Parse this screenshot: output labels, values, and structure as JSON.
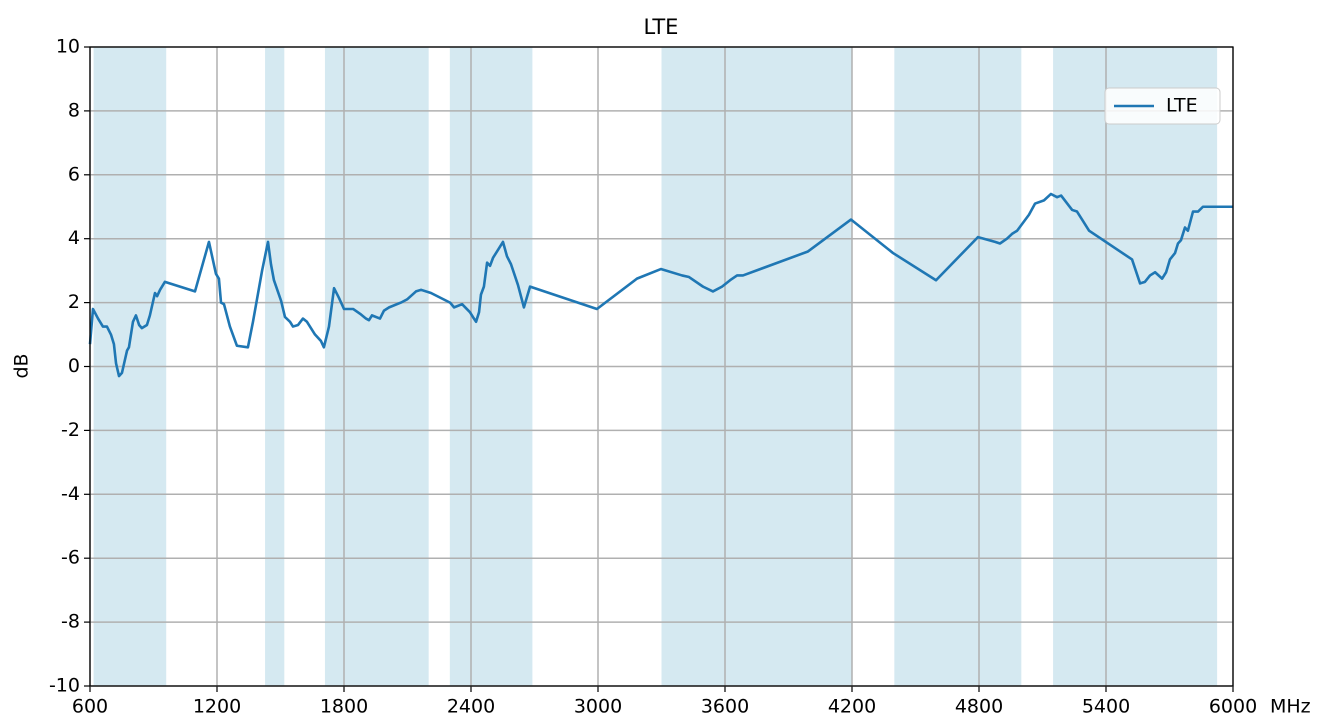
{
  "chart_data": {
    "type": "line",
    "title": "LTE",
    "xlabel": "MHz",
    "ylabel": "dB",
    "xlim": [
      600,
      6000
    ],
    "xticks": [
      600,
      1200,
      1800,
      2400,
      3000,
      3600,
      4200,
      4800,
      5400,
      6000
    ],
    "ylim": [
      -10,
      10
    ],
    "yticks": [
      -10,
      -8,
      -6,
      -4,
      -2,
      0,
      2,
      4,
      6,
      8,
      10
    ],
    "grid": true,
    "legend": "upper right",
    "band_color": "#d5e9f1",
    "bands": [
      [
        617,
        960
      ],
      [
        1427,
        1518
      ],
      [
        1710,
        2200
      ],
      [
        2300,
        2690
      ],
      [
        3300,
        4200
      ],
      [
        4400,
        5000
      ],
      [
        5150,
        5925
      ]
    ],
    "x": [
      600,
      614,
      638,
      661,
      680,
      699,
      713,
      723,
      737,
      751,
      775,
      784,
      803,
      817,
      832,
      845,
      869,
      883,
      907,
      917,
      931,
      954,
      1096,
      1162,
      1195,
      1209,
      1219,
      1233,
      1261,
      1294,
      1346,
      1370,
      1413,
      1441,
      1455,
      1469,
      1503,
      1521,
      1545,
      1559,
      1583,
      1606,
      1625,
      1663,
      1691,
      1705,
      1729,
      1753,
      1776,
      1800,
      1843,
      1876,
      1904,
      1918,
      1932,
      1970,
      1989,
      2013,
      2069,
      2098,
      2140,
      2164,
      2211,
      2301,
      2320,
      2358,
      2395,
      2409,
      2424,
      2438,
      2447,
      2461,
      2476,
      2490,
      2504,
      2551,
      2570,
      2589,
      2622,
      2650,
      2679,
      2995,
      3184,
      3297,
      3397,
      3430,
      3496,
      3543,
      3586,
      3624,
      3657,
      3685,
      3992,
      4195,
      4394,
      4597,
      4795,
      4876,
      4899,
      4932,
      4956,
      4980,
      5008,
      5036,
      5065,
      5107,
      5140,
      5169,
      5188,
      5211,
      5240,
      5263,
      5287,
      5320,
      5523,
      5561,
      5584,
      5608,
      5632,
      5665,
      5684,
      5702,
      5726,
      5740,
      5754,
      5773,
      5787,
      5811,
      5835,
      5858,
      5905,
      6000
    ],
    "series": [
      {
        "name": "LTE",
        "color": "#1f77b4",
        "values": [
          0.7,
          1.8,
          1.5,
          1.25,
          1.25,
          1.0,
          0.7,
          0.1,
          -0.3,
          -0.2,
          0.5,
          0.6,
          1.4,
          1.6,
          1.3,
          1.2,
          1.3,
          1.6,
          2.3,
          2.2,
          2.4,
          2.65,
          2.35,
          3.9,
          2.9,
          2.75,
          2.0,
          1.95,
          1.25,
          0.65,
          0.6,
          1.4,
          3.0,
          3.9,
          3.2,
          2.7,
          2.05,
          1.55,
          1.4,
          1.25,
          1.3,
          1.5,
          1.4,
          1.0,
          0.8,
          0.6,
          1.25,
          2.45,
          2.15,
          1.8,
          1.8,
          1.65,
          1.5,
          1.45,
          1.6,
          1.5,
          1.75,
          1.85,
          2.0,
          2.1,
          2.35,
          2.4,
          2.3,
          2.0,
          1.85,
          1.95,
          1.7,
          1.55,
          1.4,
          1.7,
          2.25,
          2.5,
          3.25,
          3.15,
          3.4,
          3.9,
          3.45,
          3.2,
          2.55,
          1.85,
          2.5,
          1.8,
          2.75,
          3.05,
          2.85,
          2.8,
          2.5,
          2.35,
          2.5,
          2.7,
          2.85,
          2.85,
          3.6,
          4.6,
          3.55,
          2.7,
          4.05,
          3.9,
          3.85,
          4.0,
          4.15,
          4.25,
          4.5,
          4.75,
          5.1,
          5.2,
          5.4,
          5.3,
          5.35,
          5.15,
          4.9,
          4.85,
          4.6,
          4.25,
          3.35,
          2.6,
          2.65,
          2.85,
          2.95,
          2.75,
          2.95,
          3.35,
          3.55,
          3.85,
          3.95,
          4.35,
          4.25,
          4.85,
          4.85,
          5.0,
          5.0,
          5.0
        ]
      }
    ]
  }
}
